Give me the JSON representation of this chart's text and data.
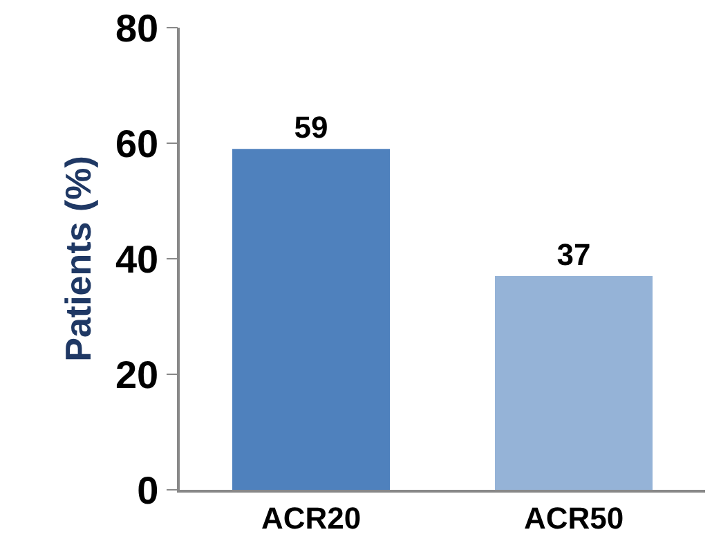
{
  "chart_data": {
    "type": "bar",
    "ylabel": "Patients (%)",
    "categories": [
      "ACR20",
      "ACR50"
    ],
    "values": [
      59,
      37
    ],
    "colors": [
      "#4f81bd",
      "#95b3d7"
    ],
    "ylim": [
      0,
      80
    ],
    "yticks": [
      0,
      20,
      40,
      60,
      80
    ],
    "data_labels": true,
    "legend": false
  }
}
